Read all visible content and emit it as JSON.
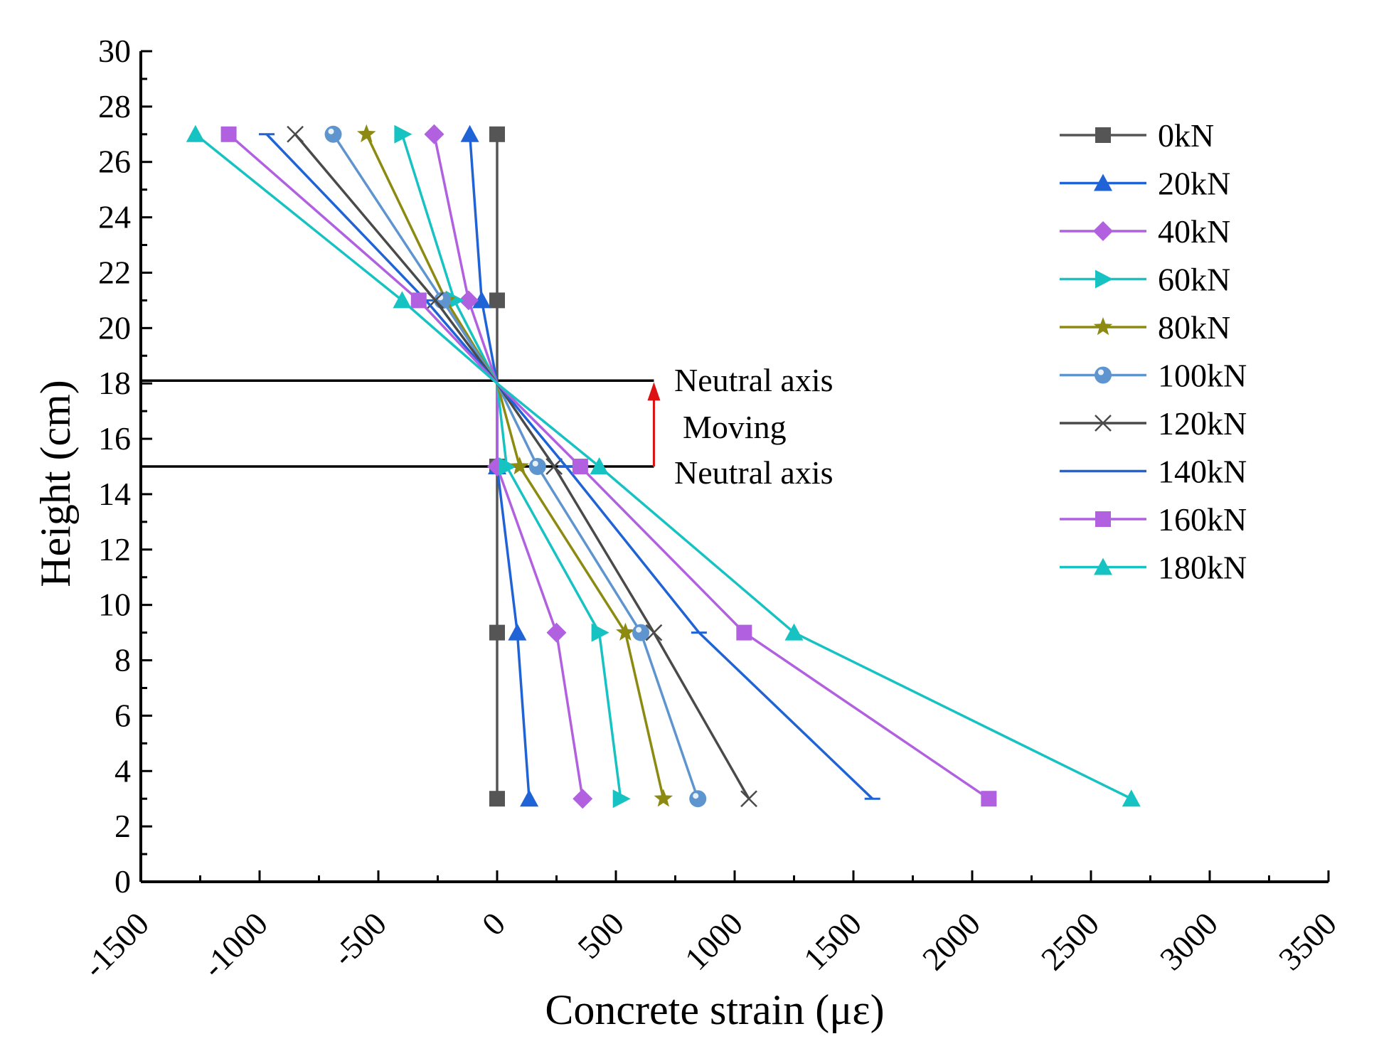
{
  "chart_data": {
    "type": "line",
    "title": "",
    "xlabel": "Concrete strain (με)",
    "ylabel": "Height (cm)",
    "xlim": [
      -1500,
      3500
    ],
    "ylim": [
      0,
      30
    ],
    "x_ticks": [
      -1500,
      -1000,
      -500,
      0,
      500,
      1000,
      1500,
      2000,
      2500,
      3000,
      3500
    ],
    "x_tick_labels": [
      "-1500",
      "-1000",
      "-500",
      "0",
      "500",
      "1000",
      "1500",
      "2000",
      "2500",
      "3000",
      "3500"
    ],
    "y_ticks": [
      0,
      2,
      4,
      6,
      8,
      10,
      12,
      14,
      16,
      18,
      20,
      22,
      24,
      26,
      28,
      30
    ],
    "y_tick_labels": [
      "0",
      "2",
      "4",
      "6",
      "8",
      "10",
      "12",
      "14",
      "16",
      "18",
      "20",
      "22",
      "24",
      "26",
      "28",
      "30"
    ],
    "grid": false,
    "legend_position": "top-right",
    "heights": [
      3,
      9,
      15,
      18,
      21,
      27
    ],
    "series": [
      {
        "name": "0kN",
        "marker": "square",
        "color": "#555555",
        "y": [
          3,
          9,
          15,
          21,
          27
        ],
        "x": [
          0,
          0,
          0,
          0,
          0
        ]
      },
      {
        "name": "20kN",
        "marker": "triangle-up",
        "color": "#1f63d6",
        "y": [
          3,
          9,
          15,
          18,
          21,
          27
        ],
        "x": [
          135,
          85,
          0,
          0,
          -65,
          -115
        ]
      },
      {
        "name": "40kN",
        "marker": "diamond",
        "color": "#b161e0",
        "y": [
          3,
          9,
          15,
          18,
          21,
          27
        ],
        "x": [
          360,
          250,
          0,
          0,
          -120,
          -265
        ]
      },
      {
        "name": "60kN",
        "marker": "triangle-right",
        "color": "#17c2c2",
        "y": [
          3,
          9,
          15,
          18,
          21,
          27
        ],
        "x": [
          520,
          430,
          40,
          0,
          -180,
          -400
        ]
      },
      {
        "name": "80kN",
        "marker": "star",
        "color": "#8d8a12",
        "y": [
          3,
          9,
          15,
          18,
          21,
          27
        ],
        "x": [
          700,
          540,
          95,
          0,
          -215,
          -550
        ]
      },
      {
        "name": "100kN",
        "marker": "circle",
        "color": "#5f95cf",
        "y": [
          3,
          9,
          15,
          18,
          21,
          27
        ],
        "x": [
          845,
          605,
          170,
          0,
          -230,
          -690
        ]
      },
      {
        "name": "120kN",
        "marker": "x",
        "color": "#4a4a4a",
        "y": [
          3,
          9,
          15,
          18,
          21,
          27
        ],
        "x": [
          1060,
          660,
          240,
          0,
          -260,
          -850
        ]
      },
      {
        "name": "140kN",
        "marker": "dash",
        "color": "#1f63d6",
        "y": [
          3,
          9,
          15,
          18,
          21,
          27
        ],
        "x": [
          1580,
          850,
          290,
          0,
          -300,
          -970
        ]
      },
      {
        "name": "160kN",
        "marker": "square",
        "color": "#b161e0",
        "y": [
          3,
          9,
          15,
          18,
          21,
          27
        ],
        "x": [
          2070,
          1040,
          350,
          0,
          -330,
          -1130
        ]
      },
      {
        "name": "180kN",
        "marker": "triangle-up",
        "color": "#17c2c2",
        "y": [
          3,
          9,
          15,
          18,
          21,
          27
        ],
        "x": [
          2670,
          1250,
          430,
          0,
          -400,
          -1270
        ]
      }
    ],
    "annotations": {
      "neutral_axis_upper": {
        "y": 18.1,
        "x_end": 660,
        "label": "Neutral axis"
      },
      "neutral_axis_lower": {
        "y": 15,
        "x_end": 660,
        "label": "Neutral axis"
      },
      "moving_label": "Moving",
      "arrow_color": "#dd1111"
    }
  }
}
